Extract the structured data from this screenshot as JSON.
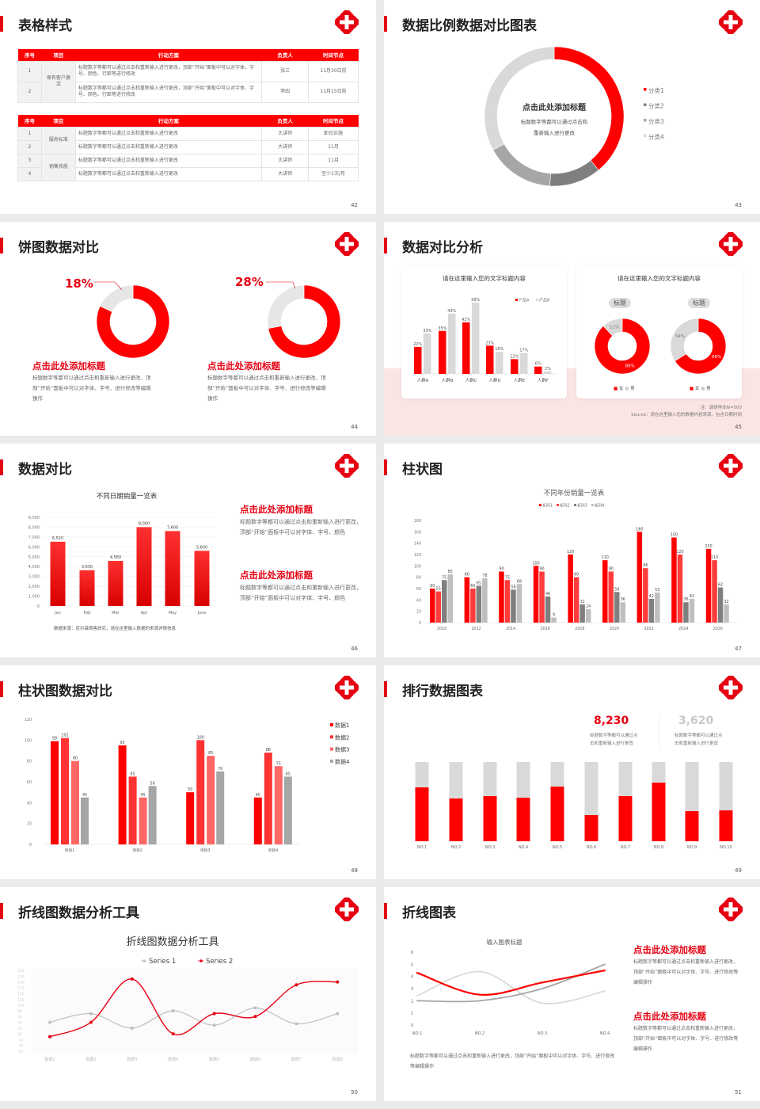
{
  "colors": {
    "red": "#ff0000",
    "accent": "#e60012",
    "gray": "#d9d9d9",
    "dark_gray": "#7f7f7f",
    "mid_gray": "#a6a6a6"
  },
  "logo_icon": "red-cross-medical-icon",
  "s42": {
    "title": "表格样式",
    "page": "42",
    "headers": [
      "序号",
      "项目",
      "行动方案",
      "负责人",
      "时间节点"
    ],
    "table1": {
      "project": "保有客户激活",
      "rows": [
        {
          "no": "1",
          "plan": "标题数字等都可以通过点击和重新输入进行更改，顶部“开始”面板中可以对字体、字号、颜色、行距等进行修改",
          "owner": "张三",
          "time": "11月30日前"
        },
        {
          "no": "2",
          "plan": "标题数字等都可以通过点击和重新输入进行更改，顶部“开始”面板中可以对字体、字号、颜色、行距等进行修改",
          "owner": "李四",
          "time": "11月15日前"
        }
      ]
    },
    "table2": {
      "projects": [
        "服务标准",
        "销售技能"
      ],
      "rows": [
        {
          "no": "1",
          "plan": "标题数字等都可以通过点击和重新输入进行更改",
          "owner": "大讲师",
          "time": "即日实施"
        },
        {
          "no": "2",
          "plan": "标题数字等都可以通过点击和重新输入进行更改",
          "owner": "大讲师",
          "time": "11月"
        },
        {
          "no": "3",
          "plan": "标题数字等都可以通过点击和重新输入进行更改",
          "owner": "大讲师",
          "time": "11月"
        },
        {
          "no": "4",
          "plan": "标题数字等都可以通过点击和重新输入进行更改",
          "owner": "大讲师",
          "time": "至少1次/月"
        }
      ]
    }
  },
  "s43": {
    "title": "数据比例数据对比图表",
    "page": "43",
    "center_heading": "点击此处添加标题",
    "center_text_1": "标题数字等都可以通过点击和",
    "center_text_2": "重新输入进行更改"
  },
  "s44": {
    "title": "饼图数据对比",
    "page": "44",
    "items": [
      {
        "percent_label": "18%",
        "heading": "点击此处添加标题",
        "text": "标题数字等都可以通过点击和重新输入进行更改，顶部“开始”面板中可以对字体、字号、进行修改等编辑操作"
      },
      {
        "percent_label": "28%",
        "heading": "点击此处添加标题",
        "text": "标题数字等都可以通过点击和重新输入进行更改，顶部“开始”面板中可以对字体、字号、进行修改等编辑操作"
      }
    ]
  },
  "s45": {
    "title": "数据对比分析",
    "page": "45",
    "card1_title": "请在这里输入您的文字标题内容",
    "card2_title": "请在这里输入您的文字标题内容",
    "pill1": "标题",
    "pill2": "标题",
    "legend_female": "女",
    "legend_male": "男",
    "note": "注：调研样本N=500",
    "source": "Source：请在这里输入您的数据内容来源，包含日期时间"
  },
  "s46": {
    "title": "数据对比",
    "page": "46",
    "source": "数据来源：尼尔森零售研究，请在这里输入数据的来源详情信息",
    "blocks": [
      {
        "heading": "点击此处添加标题",
        "text": "标题数字等都可以通过点击和重新输入进行更改，顶部“开始”面板中可以对字体、字号、颜色"
      },
      {
        "heading": "点击此处添加标题",
        "text": "标题数字等都可以通过点击和重新输入进行更改，顶部“开始”面板中可以对字体、字号、颜色"
      }
    ]
  },
  "s47": {
    "title": "柱状图",
    "page": "47"
  },
  "s48": {
    "title": "柱状图数据对比",
    "page": "48"
  },
  "s49": {
    "title": "排行数据图表",
    "page": "49",
    "kpis": [
      {
        "value": "8,230",
        "text_1": "标题数字等都可以通过点",
        "text_2": "击和重新输入进行更改"
      },
      {
        "value": "3,620",
        "text_1": "标题数字等都可以通过点",
        "text_2": "击和重新输入进行更改"
      }
    ]
  },
  "s50": {
    "title": "折线图数据分析工具",
    "page": "50"
  },
  "s51": {
    "title": "折线图表",
    "page": "51",
    "caption": "标题数字等都可以通过点击和重新输入进行更改，顶部“开始”面板中可以对字体、字号、进行修改等编辑操作",
    "blocks": [
      {
        "heading": "点击此处添加标题",
        "text": "标题数字等都可以通过点击和重新输入进行更改，顶部“开始”面板中可以对字体、字号、进行修改等编辑操作"
      },
      {
        "heading": "点击此处添加标题",
        "text": "标题数字等都可以通过点击和重新输入进行更改，顶部“开始”面板中可以对字体、字号、进行修改等编辑操作"
      }
    ]
  },
  "chart_data": [
    {
      "id": "s43",
      "type": "pie",
      "donut": true,
      "categories": [
        "分类1",
        "分类2",
        "分类3",
        "分类4"
      ],
      "values": [
        39,
        12,
        16,
        33
      ],
      "colors": [
        "#ff0000",
        "#7f7f7f",
        "#a6a6a6",
        "#d9d9d9"
      ],
      "legend": "right"
    },
    {
      "id": "s44a",
      "type": "pie",
      "donut": true,
      "values": [
        82,
        18
      ],
      "labels": [
        "",
        "18%"
      ],
      "colors": [
        "#ff0000",
        "#e6e6e6"
      ]
    },
    {
      "id": "s44b",
      "type": "pie",
      "donut": true,
      "values": [
        72,
        28
      ],
      "labels": [
        "",
        "28%"
      ],
      "colors": [
        "#ff0000",
        "#e6e6e6"
      ]
    },
    {
      "id": "s45bar",
      "type": "bar",
      "categories": [
        "人群A",
        "人群B",
        "人群C",
        "人群D",
        "人群E",
        "人群F"
      ],
      "series": [
        {
          "name": "产品A",
          "values": [
            22,
            35,
            42,
            23,
            12,
            6
          ]
        },
        {
          "name": "产品B",
          "values": [
            33,
            49,
            58,
            18,
            17,
            2
          ]
        }
      ],
      "unit": "%",
      "legend": "top-right"
    },
    {
      "id": "s45pie1",
      "type": "pie",
      "donut": true,
      "categories": [
        "女",
        "男"
      ],
      "values": [
        88,
        12
      ],
      "labels": [
        "88%",
        "12%"
      ]
    },
    {
      "id": "s45pie2",
      "type": "pie",
      "donut": true,
      "categories": [
        "女",
        "男"
      ],
      "values": [
        66,
        34
      ],
      "labels": [
        "66%",
        "34%"
      ]
    },
    {
      "id": "s46",
      "type": "bar",
      "title": "不同日期销量一览表",
      "categories": [
        "Jan",
        "Feb",
        "Mar",
        "Apr",
        "May",
        "June"
      ],
      "values": [
        6520,
        3630,
        4580,
        8000,
        7600,
        5600
      ],
      "labels": [
        "6,520",
        "3,630",
        "4,580",
        "8,000",
        "7,600",
        "5,600"
      ],
      "ylim": [
        0,
        9000
      ],
      "yticks": [
        "0",
        "1,000",
        "2,000",
        "3,000",
        "4,000",
        "5,000",
        "6,000",
        "7,000",
        "8,000",
        "9,000"
      ],
      "grid": true
    },
    {
      "id": "s47",
      "type": "bar",
      "title": "不同年份销量一览表",
      "categories": [
        "2010",
        "2012",
        "2014",
        "2016",
        "2018",
        "2020",
        "2022",
        "2024",
        "2026"
      ],
      "series": [
        {
          "name": "系列1",
          "values": [
            60,
            80,
            90,
            100,
            120,
            110,
            160,
            150,
            130
          ]
        },
        {
          "name": "系列2",
          "values": [
            55,
            60,
            75,
            90,
            80,
            90,
            96,
            120,
            110
          ]
        },
        {
          "name": "系列3",
          "values": [
            75,
            65,
            58,
            46,
            32,
            54,
            42,
            36,
            62
          ]
        },
        {
          "name": "系列4",
          "values": [
            85,
            78,
            68,
            9,
            24,
            36,
            53,
            42,
            32
          ]
        }
      ],
      "colors": [
        "#ff0000",
        "#ff3b3b",
        "#7f7f7f",
        "#bfbfbf"
      ],
      "ylim": [
        0,
        180
      ],
      "yticks": [
        0,
        20,
        40,
        60,
        80,
        100,
        120,
        140,
        160,
        180
      ],
      "legend": "top"
    },
    {
      "id": "s48",
      "type": "bar",
      "categories": [
        "项目1",
        "项目2",
        "项目3",
        "项目4"
      ],
      "series": [
        {
          "name": "数据1",
          "values": [
            99,
            95,
            50,
            45
          ]
        },
        {
          "name": "数据2",
          "values": [
            102,
            65,
            100,
            88
          ]
        },
        {
          "name": "数据3",
          "values": [
            80,
            45,
            85,
            75
          ]
        },
        {
          "name": "数据4",
          "values": [
            45,
            56,
            70,
            65
          ]
        }
      ],
      "colors": [
        "#ff0000",
        "#ff3333",
        "#ff6666",
        "#a6a6a6"
      ],
      "ylim": [
        0,
        120
      ],
      "yticks": [
        0,
        20,
        40,
        60,
        80,
        100,
        120
      ],
      "legend": "right"
    },
    {
      "id": "s49",
      "type": "bar",
      "stacked_fill": true,
      "categories": [
        "NO.1",
        "NO.2",
        "NO.3",
        "NO.4",
        "NO.5",
        "NO.6",
        "NO.7",
        "NO.8",
        "NO.9",
        "NO.10"
      ],
      "values": [
        0.68,
        0.54,
        0.57,
        0.55,
        0.69,
        0.33,
        0.57,
        0.74,
        0.38,
        0.39
      ]
    },
    {
      "id": "s50",
      "type": "line",
      "smooth": true,
      "title": "折线图数据分析工具",
      "categories": [
        "数据1",
        "数据2",
        "数据3",
        "数据4",
        "数据5",
        "数据6",
        "数据7",
        "数据8"
      ],
      "series": [
        {
          "name": "Series 1",
          "values": [
            50,
            80,
            30,
            90,
            40,
            100,
            45,
            80
          ],
          "color": "#bfbfbf"
        },
        {
          "name": "Series 2",
          "values": [
            0,
            50,
            200,
            10,
            80,
            70,
            180,
            190
          ],
          "color": "#e60012"
        }
      ],
      "ylim": [
        -50,
        230
      ],
      "yticks": [
        230,
        210,
        190,
        170,
        150,
        130,
        110,
        90,
        70,
        50,
        30,
        10,
        -10,
        -30,
        -50
      ],
      "legend": "top"
    },
    {
      "id": "s51",
      "type": "line",
      "smooth": true,
      "title": "输入图表标题",
      "categories": [
        "NO.1",
        "NO.2",
        "NO.3",
        "NO.4"
      ],
      "series": [
        {
          "values": [
            4.3,
            2.5,
            3.5,
            4.5
          ],
          "color": "#ff0000"
        },
        {
          "values": [
            2.4,
            4.4,
            1.8,
            2.8
          ],
          "color": "#d9d9d9"
        },
        {
          "values": [
            2.0,
            2.0,
            3.0,
            5.0
          ],
          "color": "#a6a6a6"
        }
      ],
      "ylim": [
        0,
        6
      ],
      "yticks": [
        0,
        1,
        2,
        3,
        4,
        5,
        6
      ]
    }
  ]
}
